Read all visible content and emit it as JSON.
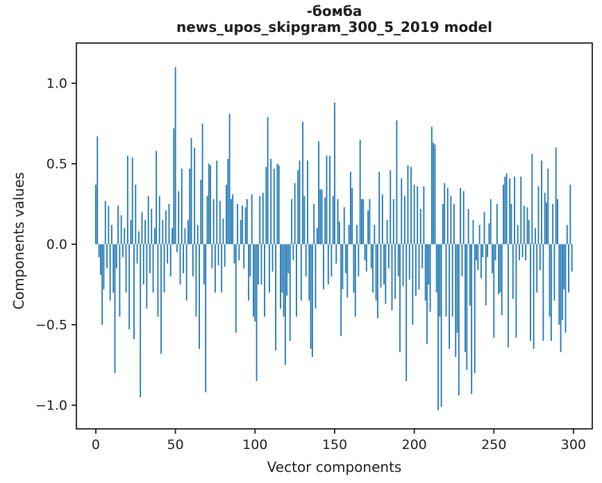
{
  "figure": {
    "background": "#ffffff"
  },
  "chart_data": {
    "type": "bar",
    "title": "-бомба",
    "subtitle": "news_upos_skipgram_300_5_2019 model",
    "xlabel": "Vector components",
    "ylabel": "Components values",
    "bar_color": "#1f77b4",
    "axis_color": "#1c1c1c",
    "grid": false,
    "legend_position": "none",
    "x_start": 0,
    "n_components": 300,
    "xlim": [
      -12.2,
      311.8
    ],
    "ylim": [
      -1.147,
      1.25
    ],
    "xticks": [
      0,
      50,
      100,
      150,
      200,
      250,
      300
    ],
    "yticks": [
      {
        "v": 1.0,
        "label": "1.0"
      },
      {
        "v": 0.5,
        "label": "0.5"
      },
      {
        "v": 0.0,
        "label": "0.0"
      },
      {
        "v": -0.5,
        "label": "−0.5"
      },
      {
        "v": -1.0,
        "label": "−1.0"
      }
    ],
    "values": [
      0.37,
      0.67,
      -0.08,
      -0.19,
      -0.5,
      -0.28,
      0.27,
      -0.15,
      0.24,
      -0.35,
      0.12,
      -0.3,
      -0.8,
      -0.15,
      0.24,
      -0.45,
      0.18,
      -0.08,
      0.1,
      -0.3,
      0.55,
      -0.53,
      0.15,
      0.54,
      -0.59,
      0.37,
      -0.12,
      0.08,
      -0.95,
      0.2,
      -0.25,
      0.15,
      -0.4,
      0.3,
      -0.18,
      0.22,
      -0.3,
      0.1,
      0.58,
      -0.45,
      0.3,
      -0.68,
      0.15,
      -0.3,
      0.21,
      -0.12,
      0.25,
      -0.2,
      0.1,
      0.72,
      1.1,
      -0.05,
      0.33,
      -0.25,
      0.47,
      -0.18,
      0.1,
      -0.35,
      0.15,
      0.47,
      0.66,
      -0.2,
      0.6,
      -0.45,
      0.12,
      -0.65,
      0.4,
      0.75,
      -0.25,
      -0.92,
      0.3,
      0.5,
      0.49,
      -0.15,
      0.28,
      -0.3,
      0.52,
      -0.13,
      0.27,
      -0.3,
      0.16,
      -0.14,
      0.37,
      0.53,
      0.81,
      0.28,
      0.31,
      -0.12,
      -0.55,
      0.25,
      -0.1,
      0.15,
      0.24,
      -0.15,
      0.23,
      0.28,
      -0.35,
      -0.2,
      0.31,
      -0.45,
      -0.48,
      -0.85,
      -0.25,
      0.3,
      -0.25,
      0.32,
      -0.45,
      0.48,
      0.79,
      -0.3,
      0.53,
      -0.17,
      0.47,
      -0.66,
      0.5,
      0.49,
      -0.4,
      -0.3,
      -0.45,
      -0.75,
      -0.32,
      -0.18,
      -0.6,
      0.28,
      -0.1,
      0.38,
      -0.45,
      0.46,
      0.52,
      -0.35,
      0.76,
      0.3,
      -0.2,
      0.52,
      -0.35,
      -0.65,
      -0.7,
      0.25,
      -0.4,
      0.1,
      0.64,
      0.34,
      0.34,
      -0.28,
      0.29,
      0.55,
      -0.25,
      0.55,
      -0.2,
      0.3,
      0.88,
      -0.12,
      0.28,
      0.14,
      -0.57,
      -0.28,
      0.23,
      -0.18,
      -0.33,
      0.12,
      0.45,
      0.35,
      -0.3,
      -0.45,
      0.12,
      -0.2,
      0.65,
      0.28,
      0.28,
      -0.1,
      -0.17,
      0.21,
      0.28,
      -0.15,
      -0.3,
      0.12,
      -0.35,
      -0.46,
      0.45,
      -0.27,
      0.31,
      -0.25,
      -0.37,
      0.15,
      -0.15,
      0.46,
      -0.41,
      0.28,
      -0.34,
      0.77,
      -0.2,
      -0.67,
      0.41,
      -0.26,
      0.3,
      -0.85,
      0.49,
      -0.22,
      0.48,
      -0.5,
      0.37,
      -0.32,
      0.36,
      -0.28,
      0.22,
      -0.15,
      0.36,
      -0.35,
      -0.62,
      -0.25,
      -0.42,
      0.73,
      0.63,
      0.62,
      -0.3,
      -1.03,
      -0.45,
      -1.01,
      0.25,
      0.38,
      -0.45,
      0.35,
      -0.65,
      0.3,
      -0.45,
      0.25,
      -0.7,
      -0.55,
      -0.94,
      0.35,
      -0.2,
      0.33,
      -0.67,
      -0.78,
      0.22,
      -0.38,
      -0.93,
      0.15,
      -0.8,
      -0.1,
      -0.16,
      0.12,
      -0.21,
      -0.08,
      0.2,
      -0.38,
      -0.08,
      0.13,
      0.28,
      -0.18,
      -0.58,
      -0.1,
      0.25,
      -0.31,
      -0.3,
      -0.44,
      0.37,
      0.42,
      0.44,
      -0.64,
      0.41,
      0.25,
      -0.34,
      0.42,
      -0.58,
      0.12,
      -0.1,
      0.42,
      -0.08,
      0.24,
      -0.1,
      0.23,
      0.15,
      -0.6,
      0.56,
      -0.65,
      0.1,
      -0.3,
      0.36,
      -0.16,
      0.52,
      -0.6,
      0.32,
      0.26,
      0.47,
      -0.45,
      -0.6,
      0.25,
      -0.35,
      0.6,
      0.28,
      -0.5,
      -0.67,
      -0.47,
      -0.28,
      -0.55,
      0.12,
      -0.3,
      0.37,
      -0.17
    ]
  }
}
